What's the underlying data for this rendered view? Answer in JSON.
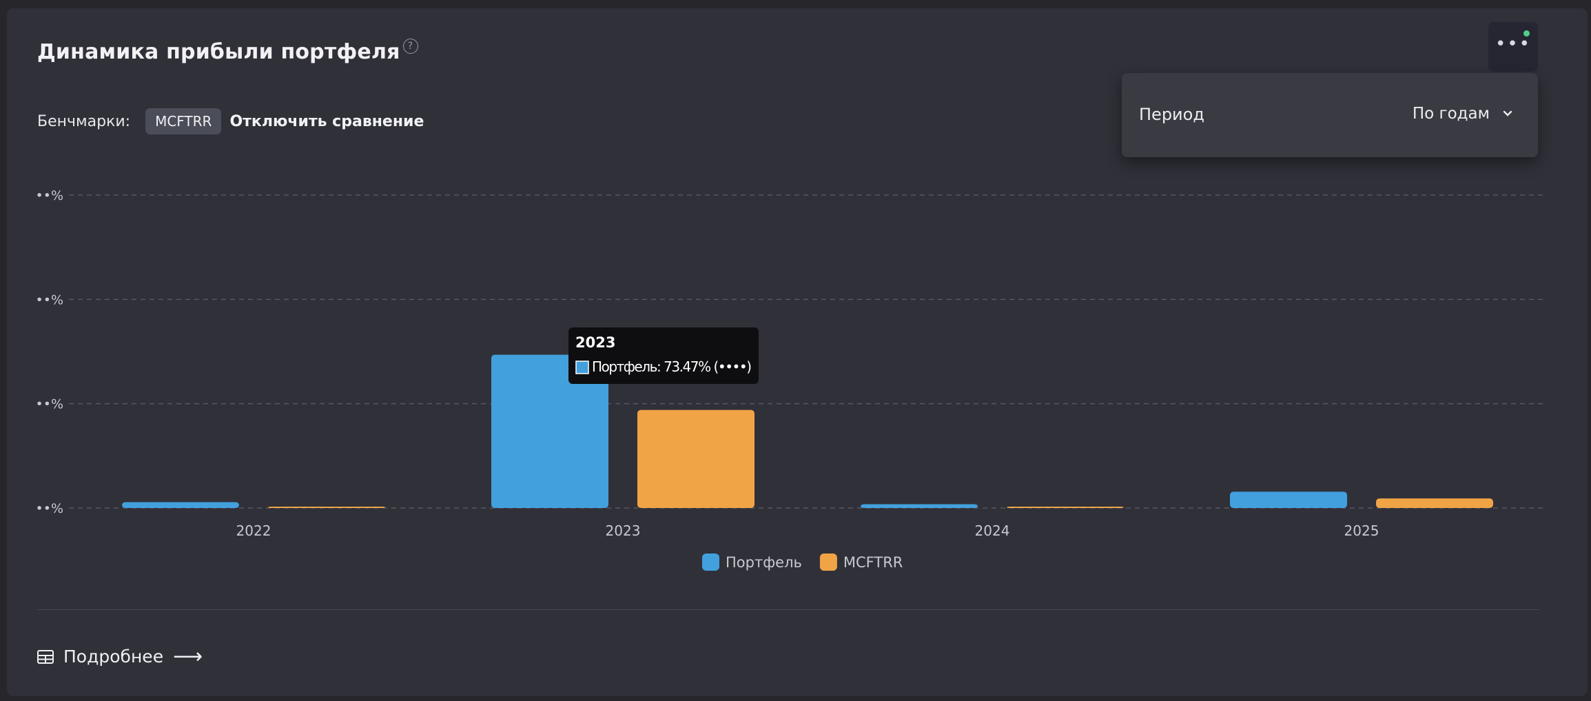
{
  "title": "Динамика прибыли портфеля",
  "help_icon": "question-circle-icon",
  "menu": {
    "icon": "ellipsis-icon",
    "status_color": "#4fd18b"
  },
  "dropdown": {
    "period_label": "Период",
    "period_value": "По годам",
    "icon": "chevron-down-icon"
  },
  "benchmarks": {
    "label": "Бенчмарки:",
    "chip": "MCFTRR",
    "disable": "Отключить сравнение"
  },
  "chart_data": {
    "type": "bar",
    "categories": [
      "2022",
      "2023",
      "2024",
      "2025"
    ],
    "series": [
      {
        "name": "Портфель",
        "color": "#42a0dd",
        "values": [
          2.8,
          73.47,
          1.8,
          7.8
        ]
      },
      {
        "name": "MCFTRR",
        "color": "#f0a446",
        "values": [
          0.3,
          47.0,
          0.4,
          4.6
        ]
      }
    ],
    "y_tick_labels": [
      "••%",
      "••%",
      "••%",
      "••%"
    ],
    "ylim": [
      0,
      150
    ],
    "grid": true,
    "legend_position": "bottom-center"
  },
  "tooltip": {
    "title": "2023",
    "text": "Портфель: 73.47% (••••)"
  },
  "footer": {
    "details": "Подробнее",
    "table_icon": "table-icon",
    "arrow_icon": "arrow-right-icon",
    "arrow": "⟶"
  }
}
